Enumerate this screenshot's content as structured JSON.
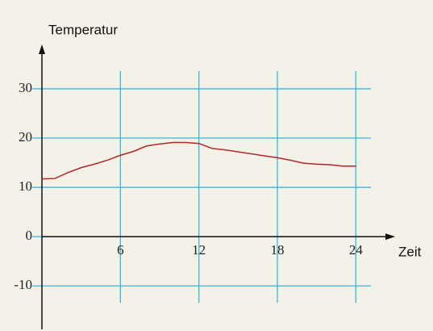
{
  "chart_data": {
    "type": "line",
    "ylabel": "Temperatur",
    "xlabel": "Zeit",
    "x": [
      0,
      1,
      2,
      3,
      4,
      5,
      6,
      7,
      8,
      9,
      10,
      11,
      12,
      13,
      14,
      15,
      16,
      17,
      18,
      19,
      20,
      21,
      22,
      23,
      24
    ],
    "series": [
      {
        "color": "#b3262a",
        "values": [
          11.7,
          11.8,
          13,
          14,
          14.7,
          15.5,
          16.5,
          17.3,
          18.4,
          18.8,
          19.1,
          19.1,
          18.9,
          17.9,
          17.6,
          17.2,
          16.8,
          16.4,
          16.0,
          15.5,
          14.9,
          14.7,
          14.6,
          14.3,
          14.3
        ]
      }
    ],
    "xlim": [
      0,
      27
    ],
    "ylim": [
      -18,
      39
    ],
    "xticks": [
      6,
      12,
      18,
      24
    ],
    "yticks": [
      -10,
      0,
      10,
      20,
      30
    ],
    "grid": true,
    "grid_color": "#3bb4dc"
  }
}
